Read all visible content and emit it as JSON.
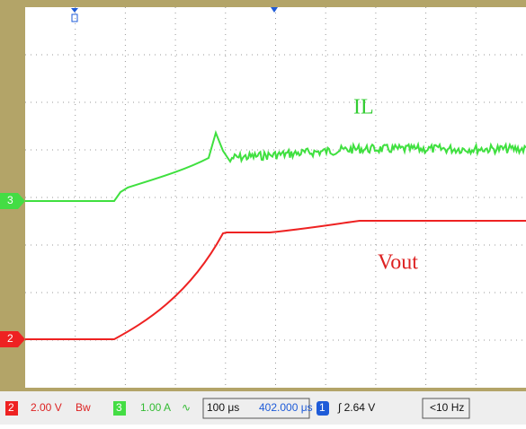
{
  "traces": {
    "il_label": "IL",
    "vout_label": "Vout",
    "ch3_marker": "3",
    "ch2_marker": "2"
  },
  "status_bar": {
    "ch2_badge": "2",
    "ch2_scale": "2.00 V",
    "ch2_bw": "Bw",
    "ch3_badge": "3",
    "ch3_scale": "1.00 A",
    "ch3_coupling": "∿",
    "timebase": "100 μs",
    "position": "402.000 μs",
    "trigger_badge": "1",
    "trigger_level": "∫ 2.64 V",
    "frequency": "<10 Hz"
  }
}
